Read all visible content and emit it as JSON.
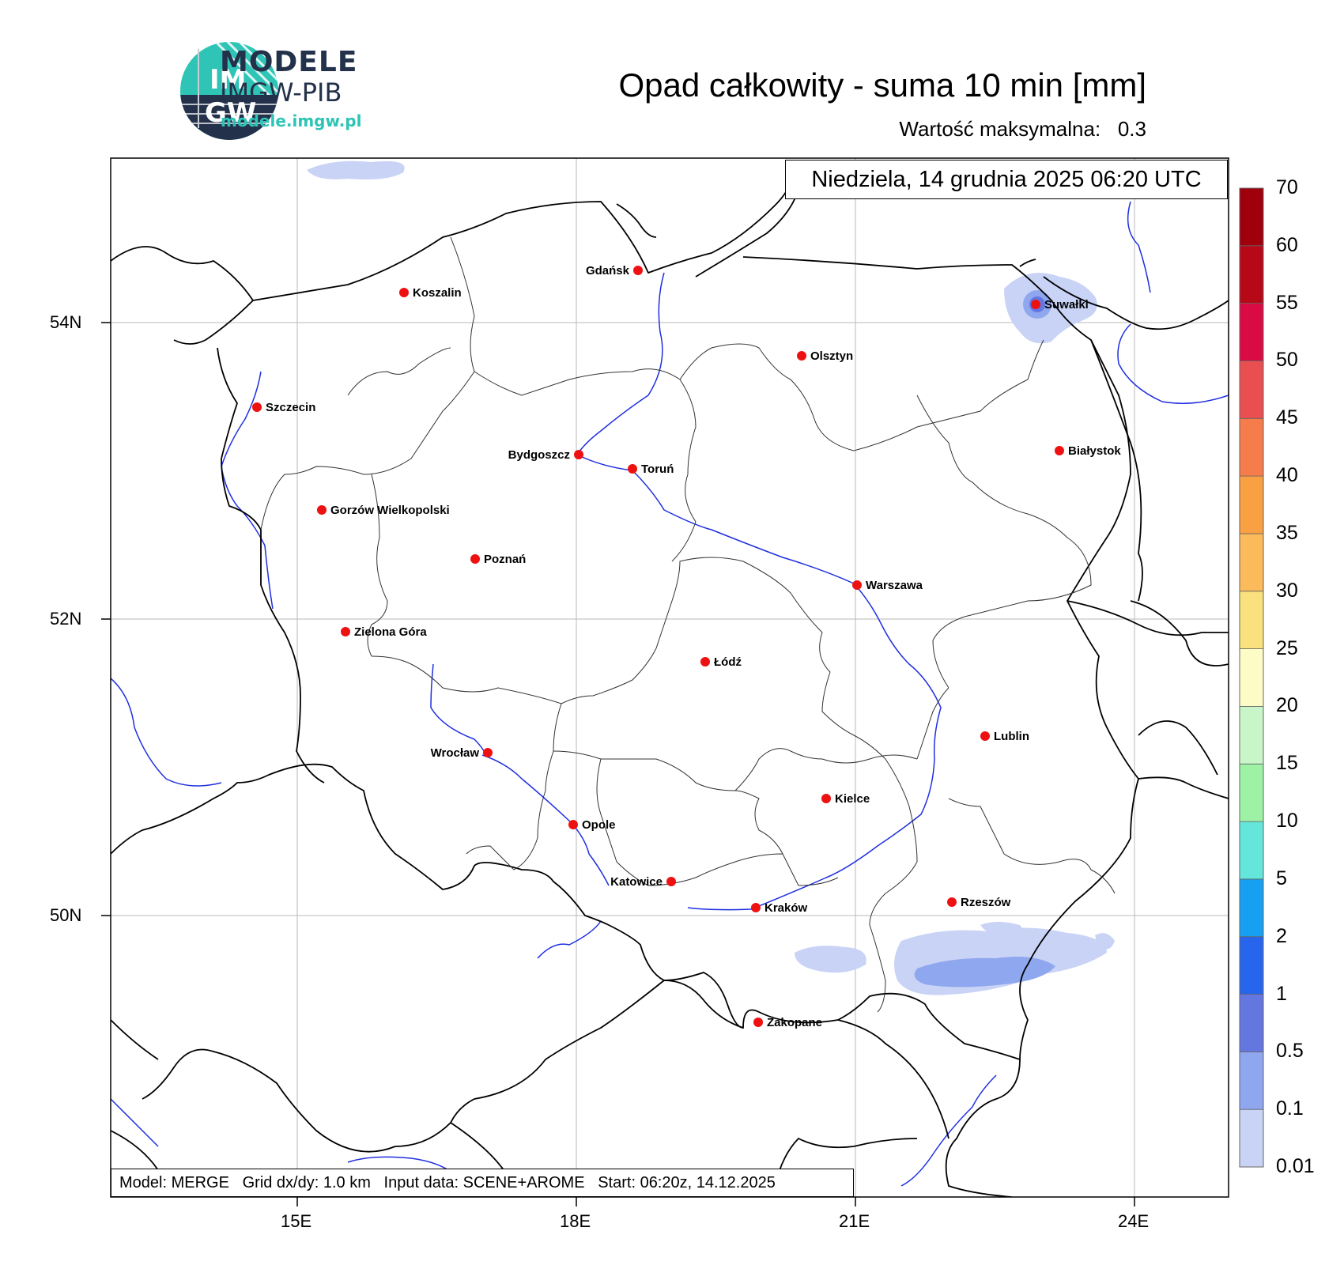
{
  "logo": {
    "badge_top": "IM",
    "badge_bottom": "GW",
    "line1": "MODELE",
    "line2": "IMGW-PIB",
    "url": "modele.imgw.pl",
    "colors": {
      "teal": "#2ec4b6",
      "navy": "#23314a"
    }
  },
  "header": {
    "title": "Opad całkowity - suma 10 min [mm]",
    "max_label": "Wartość maksymalna:",
    "max_value": "0.3"
  },
  "map": {
    "valid_time": "Niedziela, 14 grudnia 2025 06:20 UTC",
    "lat_ticks": [
      "54N",
      "52N",
      "50N"
    ],
    "lon_ticks": [
      "15E",
      "18E",
      "21E",
      "24E"
    ],
    "footer": "Model: MERGE   Grid dx/dy: 1.0 km   Input data: SCENE+AROME   Start: 06:20z, 14.12.2025",
    "cities": [
      {
        "name": "Gdańsk"
      },
      {
        "name": "Koszalin"
      },
      {
        "name": "Suwałki"
      },
      {
        "name": "Olsztyn"
      },
      {
        "name": "Szczecin"
      },
      {
        "name": "Białystok"
      },
      {
        "name": "Bydgoszcz"
      },
      {
        "name": "Toruń"
      },
      {
        "name": "Gorzów Wielkopolski"
      },
      {
        "name": "Poznań"
      },
      {
        "name": "Warszawa"
      },
      {
        "name": "Zielona Góra"
      },
      {
        "name": "Łódź"
      },
      {
        "name": "Lublin"
      },
      {
        "name": "Wrocław"
      },
      {
        "name": "Kielce"
      },
      {
        "name": "Opole"
      },
      {
        "name": "Katowice"
      },
      {
        "name": "Kraków"
      },
      {
        "name": "Rzeszów"
      },
      {
        "name": "Zakopane"
      }
    ],
    "colors": {
      "city_dot": "#ee1111",
      "rivers": "#1f2fe0",
      "borders": "#000000",
      "precip_light": "#c9d3f6",
      "precip_mid": "#8ea7ee"
    }
  },
  "legend": {
    "levels": [
      "0.01",
      "0.1",
      "0.5",
      "1",
      "2",
      "5",
      "10",
      "15",
      "20",
      "25",
      "30",
      "35",
      "40",
      "45",
      "50",
      "55",
      "60",
      "70"
    ],
    "colors": [
      "#c9d3f6",
      "#8ea7ee",
      "#6476e0",
      "#2765ec",
      "#17a0f2",
      "#64e6da",
      "#9df2a6",
      "#c9f6c9",
      "#fdfcc6",
      "#fbe07e",
      "#fbbb5a",
      "#f9a042",
      "#f67c4c",
      "#e94f50",
      "#da0a44",
      "#b70818",
      "#a0000c",
      "#7a0404"
    ]
  }
}
